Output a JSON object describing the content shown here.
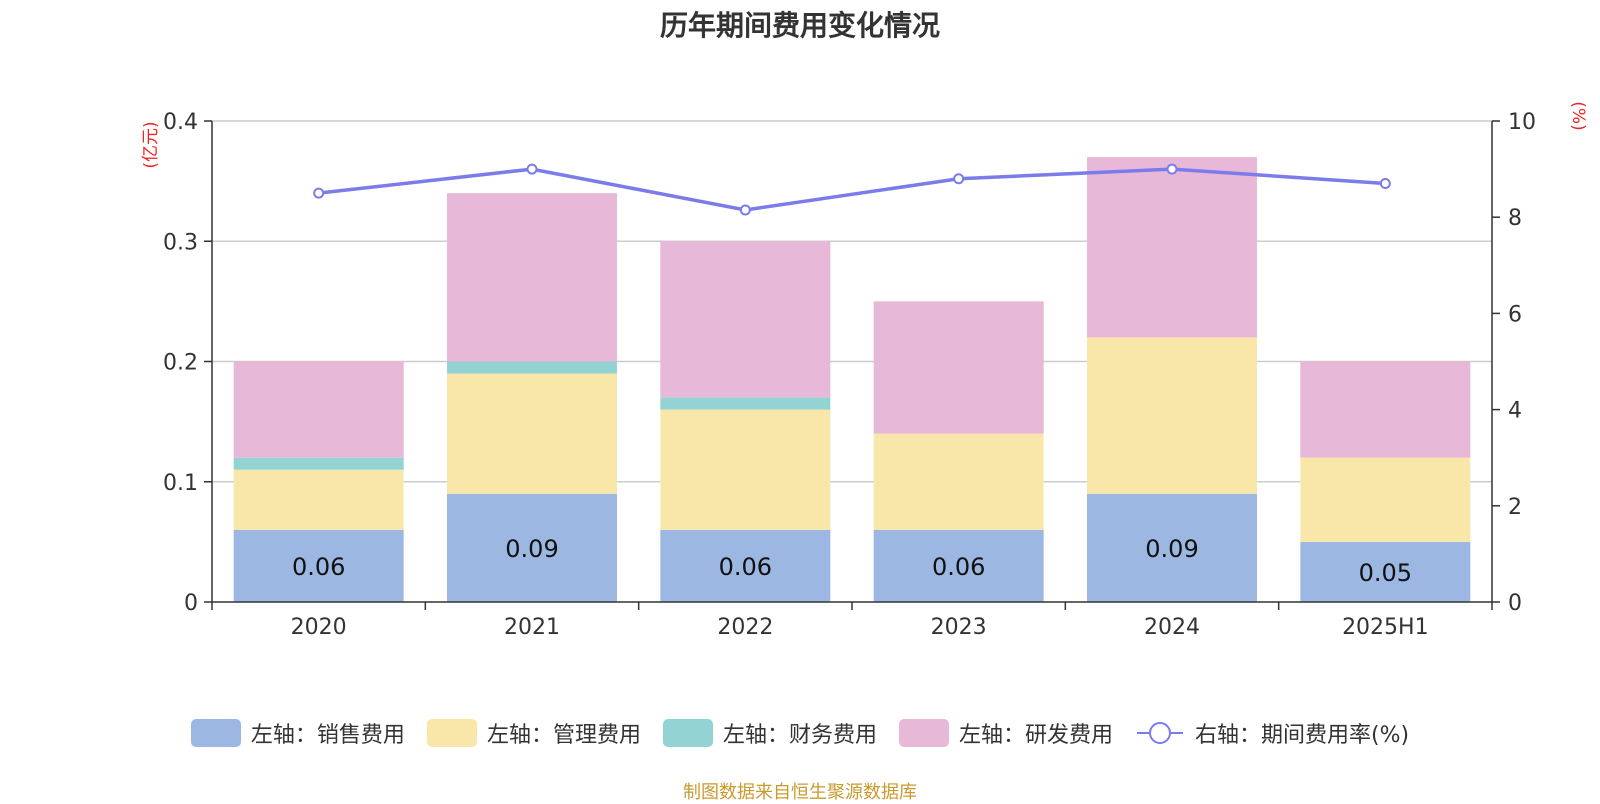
{
  "title": "历年期间费用变化情况",
  "source": "制图数据来自恒生聚源数据库",
  "colors": {
    "sales": "#9bb7e2",
    "admin": "#f8e7a8",
    "finance": "#94d3d3",
    "rnd": "#e7b8d8",
    "rate": "#7b7bea",
    "axis_unit": "#ee2222"
  },
  "chart_data": {
    "type": "bar",
    "stacked": true,
    "categories": [
      "2020",
      "2021",
      "2022",
      "2023",
      "2024",
      "2025H1"
    ],
    "left_axis": {
      "unit": "(亿元)",
      "ylim": [
        0,
        0.4
      ],
      "ticks": [
        "0",
        "0.1",
        "0.2",
        "0.3",
        "0.4"
      ]
    },
    "right_axis": {
      "unit": "(%)",
      "ylim": [
        0,
        10
      ],
      "ticks": [
        "0",
        "2",
        "4",
        "6",
        "8",
        "10"
      ]
    },
    "grid": true,
    "legend_position": "bottom",
    "series": [
      {
        "key": "sales",
        "name": "左轴：销售费用",
        "type": "bar",
        "axis": "left",
        "values": [
          0.06,
          0.09,
          0.06,
          0.06,
          0.09,
          0.05
        ],
        "labels": [
          "0.06",
          "0.09",
          "0.06",
          "0.06",
          "0.09",
          "0.05"
        ]
      },
      {
        "key": "admin",
        "name": "左轴：管理费用",
        "type": "bar",
        "axis": "left",
        "values": [
          0.05,
          0.1,
          0.1,
          0.08,
          0.13,
          0.07
        ]
      },
      {
        "key": "finance",
        "name": "左轴：财务费用",
        "type": "bar",
        "axis": "left",
        "values": [
          0.01,
          0.01,
          0.01,
          0.0,
          0.0,
          0.0
        ]
      },
      {
        "key": "rnd",
        "name": "左轴：研发费用",
        "type": "bar",
        "axis": "left",
        "values": [
          0.08,
          0.14,
          0.13,
          0.11,
          0.15,
          0.08
        ]
      },
      {
        "key": "rate",
        "name": "右轴：期间费用率(%)",
        "type": "line",
        "axis": "right",
        "values": [
          8.5,
          9.0,
          8.15,
          8.8,
          9.0,
          8.7
        ]
      }
    ]
  }
}
